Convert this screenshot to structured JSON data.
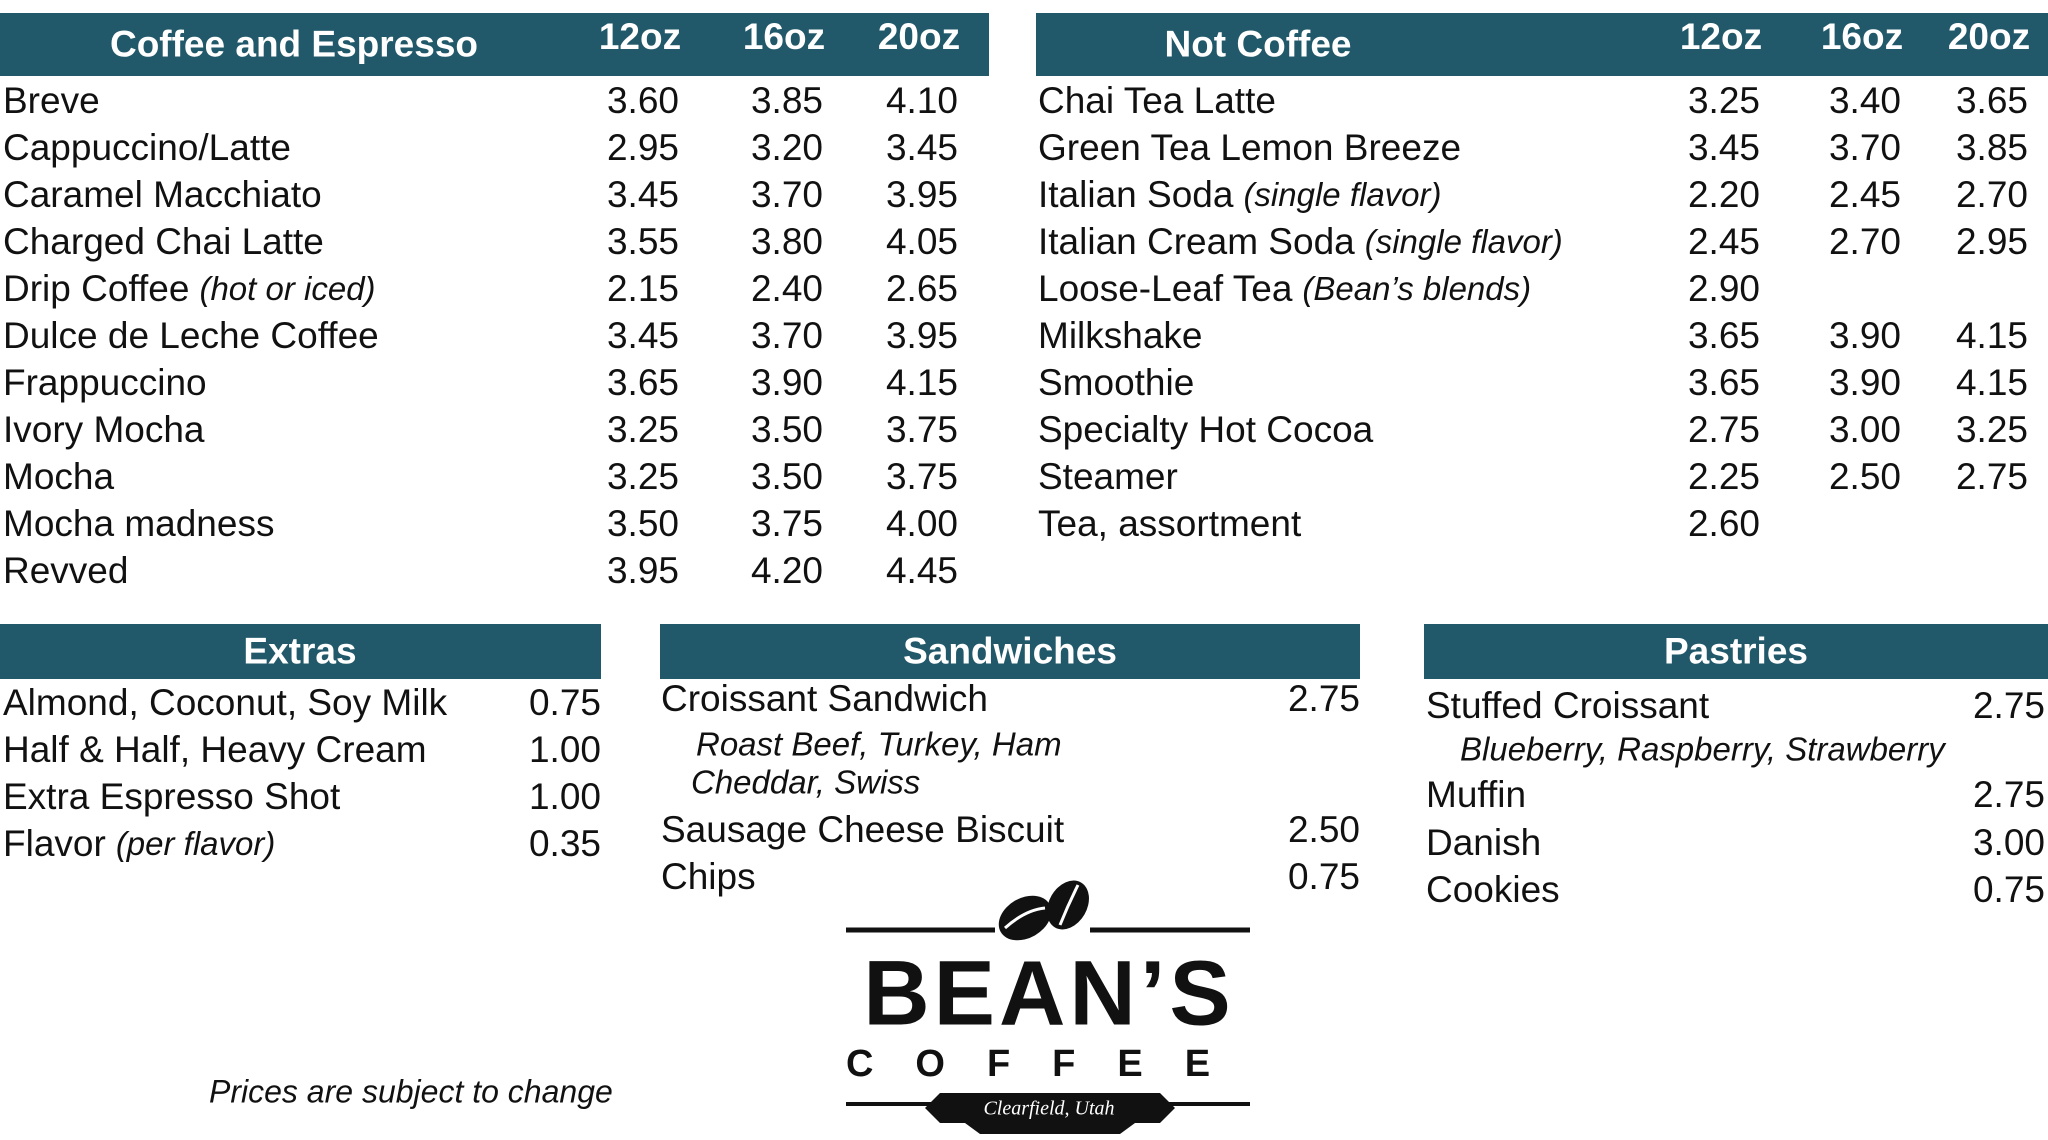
{
  "coffee_and_espresso": {
    "title": "Coffee and Espresso",
    "sizes": [
      "12oz",
      "16oz",
      "20oz"
    ],
    "items": [
      {
        "name": "Breve",
        "prices": [
          "3.60",
          "3.85",
          "4.10"
        ]
      },
      {
        "name": "Cappuccino/Latte",
        "prices": [
          "2.95",
          "3.20",
          "3.45"
        ]
      },
      {
        "name": "Caramel Macchiato",
        "prices": [
          "3.45",
          "3.70",
          "3.95"
        ]
      },
      {
        "name": "Charged Chai Latte",
        "prices": [
          "3.55",
          "3.80",
          "4.05"
        ]
      },
      {
        "name": "Drip Coffee",
        "note": "(hot or iced)",
        "prices": [
          "2.15",
          "2.40",
          "2.65"
        ]
      },
      {
        "name": "Dulce de Leche Coffee",
        "prices": [
          "3.45",
          "3.70",
          "3.95"
        ]
      },
      {
        "name": "Frappuccino",
        "prices": [
          "3.65",
          "3.90",
          "4.15"
        ]
      },
      {
        "name": "Ivory Mocha",
        "prices": [
          "3.25",
          "3.50",
          "3.75"
        ]
      },
      {
        "name": "Mocha",
        "prices": [
          "3.25",
          "3.50",
          "3.75"
        ]
      },
      {
        "name": "Mocha madness",
        "prices": [
          "3.50",
          "3.75",
          "4.00"
        ]
      },
      {
        "name": "Revved",
        "prices": [
          "3.95",
          "4.20",
          "4.45"
        ]
      }
    ]
  },
  "not_coffee": {
    "title": "Not Coffee",
    "sizes": [
      "12oz",
      "16oz",
      "20oz"
    ],
    "items": [
      {
        "name": "Chai Tea Latte",
        "prices": [
          "3.25",
          "3.40",
          "3.65"
        ]
      },
      {
        "name": "Green Tea Lemon Breeze",
        "prices": [
          "3.45",
          "3.70",
          "3.85"
        ]
      },
      {
        "name": "Italian Soda",
        "note": "(single flavor)",
        "prices": [
          "2.20",
          "2.45",
          "2.70"
        ]
      },
      {
        "name": "Italian Cream Soda",
        "note": "(single flavor)",
        "prices": [
          "2.45",
          "2.70",
          "2.95"
        ]
      },
      {
        "name": "Loose-Leaf Tea",
        "note": "(Bean’s blends)",
        "prices": [
          "2.90"
        ]
      },
      {
        "name": "Milkshake",
        "prices": [
          "3.65",
          "3.90",
          "4.15"
        ]
      },
      {
        "name": "Smoothie",
        "prices": [
          "3.65",
          "3.90",
          "4.15"
        ]
      },
      {
        "name": "Specialty Hot Cocoa",
        "prices": [
          "2.75",
          "3.00",
          "3.25"
        ]
      },
      {
        "name": "Steamer",
        "prices": [
          "2.25",
          "2.50",
          "2.75"
        ]
      },
      {
        "name": "Tea, assortment",
        "prices": [
          "2.60"
        ]
      }
    ]
  },
  "extras": {
    "title": "Extras",
    "items": [
      {
        "name": "Almond, Coconut, Soy Milk",
        "price": "0.75"
      },
      {
        "name": "Half & Half, Heavy Cream",
        "price": "1.00"
      },
      {
        "name": "Extra Espresso Shot",
        "price": "1.00"
      },
      {
        "name": "Flavor",
        "note": "(per flavor)",
        "price": "0.35"
      }
    ]
  },
  "sandwiches": {
    "title": "Sandwiches",
    "items": [
      {
        "name": "Croissant Sandwich",
        "price": "2.75",
        "details": [
          "Roast Beef, Turkey, Ham",
          "Cheddar, Swiss"
        ]
      },
      {
        "name": "Sausage Cheese Biscuit",
        "price": "2.50"
      },
      {
        "name": "Chips",
        "price": "0.75"
      }
    ]
  },
  "pastries": {
    "title": "Pastries",
    "items": [
      {
        "name": "Stuffed Croissant",
        "price": "2.75",
        "details": [
          "Blueberry, Raspberry, Strawberry"
        ]
      },
      {
        "name": "Muffin",
        "price": "2.75"
      },
      {
        "name": "Danish",
        "price": "3.00"
      },
      {
        "name": "Cookies",
        "price": "0.75"
      }
    ]
  },
  "footer_note": "Prices are subject to change",
  "logo": {
    "name": "BEAN’S",
    "subtitle": "COFFEE",
    "location": "Clearfield, Utah"
  }
}
